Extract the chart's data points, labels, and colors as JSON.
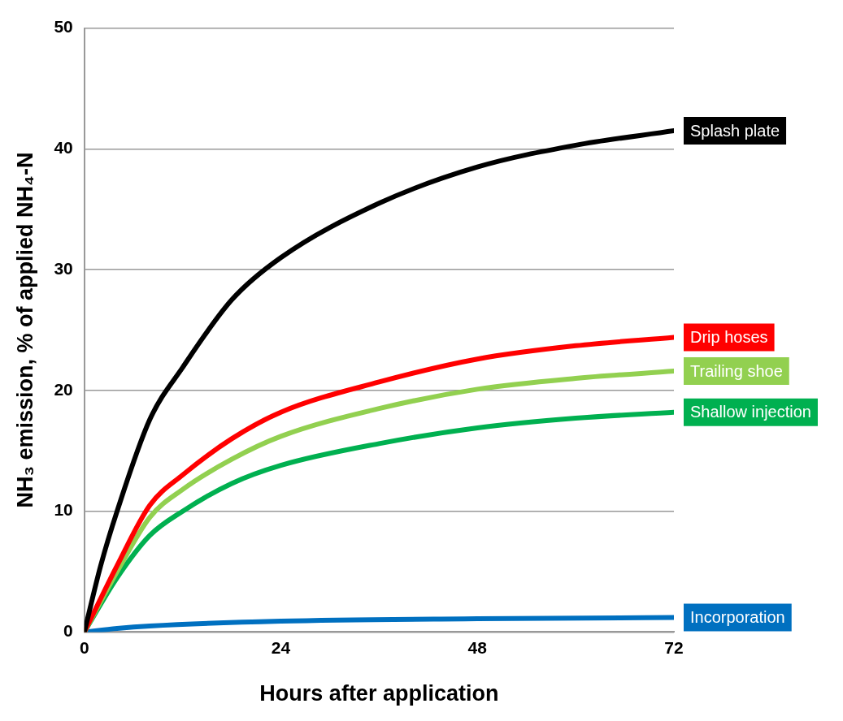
{
  "chart_data": {
    "type": "line",
    "xlabel": "Hours after application",
    "ylabel": "NH₃ emission, % of applied NH₄-N",
    "x": [
      0,
      4,
      8,
      12,
      18,
      24,
      36,
      48,
      60,
      72
    ],
    "xlim": [
      0,
      72
    ],
    "xticks": [
      0,
      24,
      48,
      72
    ],
    "ylim": [
      0,
      50
    ],
    "yticks": [
      0,
      10,
      20,
      30,
      40,
      50
    ],
    "grid": "y",
    "legend": false,
    "marker": "none",
    "line_style": "solid",
    "series": [
      {
        "name": "Splash plate",
        "color": "#000000",
        "x": [
          0,
          2,
          4,
          8,
          12,
          18,
          24,
          36,
          48,
          60,
          72
        ],
        "values": [
          0,
          5.5,
          10,
          17.6,
          21.9,
          27.5,
          31,
          35.5,
          38.5,
          40.3,
          41.5
        ]
      },
      {
        "name": "Drip hoses",
        "color": "#ff0000",
        "values": [
          0,
          5.5,
          10.5,
          13,
          16,
          18.2,
          20.7,
          22.6,
          23.7,
          24.4
        ]
      },
      {
        "name": "Trailing shoe",
        "color": "#92d050",
        "values": [
          0,
          5,
          9.5,
          11.8,
          14.3,
          16.2,
          18.5,
          20.1,
          21,
          21.6
        ]
      },
      {
        "name": "Shallow injection",
        "color": "#00b050",
        "values": [
          0,
          4.5,
          8,
          10,
          12.3,
          13.8,
          15.6,
          16.9,
          17.7,
          18.2
        ]
      },
      {
        "name": "Incorporation",
        "color": "#0070c0",
        "x": [
          0,
          4,
          8,
          24,
          48,
          72
        ],
        "values": [
          0,
          0.3,
          0.5,
          0.9,
          1.1,
          1.2
        ]
      }
    ]
  }
}
